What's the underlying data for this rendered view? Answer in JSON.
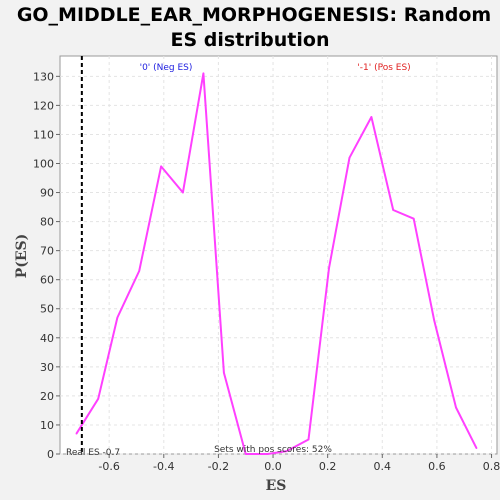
{
  "chart_data": {
    "type": "line",
    "title_line1": "GO_MIDDLE_EAR_MORPHOGENESIS: Random",
    "title_line2": "ES distribution",
    "xlabel": "ES",
    "ylabel": "P(ES)",
    "xlim": [
      -0.78,
      0.82
    ],
    "ylim": [
      0,
      137
    ],
    "x_ticks": [
      "-0.6",
      "-0.4",
      "-0.2",
      "0.0",
      "0.2",
      "0.4",
      "0.6",
      "0.8"
    ],
    "x_tick_values": [
      -0.6,
      -0.4,
      -0.2,
      0.0,
      0.2,
      0.4,
      0.6,
      0.8
    ],
    "y_ticks": [
      "0",
      "10",
      "20",
      "30",
      "40",
      "50",
      "60",
      "70",
      "80",
      "90",
      "100",
      "110",
      "120",
      "130"
    ],
    "y_tick_values": [
      0,
      10,
      20,
      30,
      40,
      50,
      60,
      70,
      80,
      90,
      100,
      110,
      120,
      130
    ],
    "grid": true,
    "series": [
      {
        "color": "#ff40ff",
        "x": [
          -0.72,
          -0.64,
          -0.57,
          -0.49,
          -0.41,
          -0.33,
          -0.255,
          -0.18,
          -0.1,
          -0.02,
          0.05,
          0.13,
          0.205,
          0.28,
          0.36,
          0.44,
          0.515,
          0.59,
          0.67,
          0.745
        ],
        "y": [
          7,
          19,
          47,
          63,
          99,
          90,
          131,
          28,
          0,
          0,
          1,
          5,
          64,
          102,
          116,
          84,
          81,
          46,
          16,
          2
        ]
      }
    ],
    "real_es": {
      "value": -0.7,
      "label": "Real ES -0.7",
      "color": "#000000"
    },
    "annotations": {
      "neg_label": "'0' (Neg ES)",
      "neg_color": "#2020e0",
      "pos_label": "'-1' (Pos ES)",
      "pos_color": "#e02020",
      "sets_label": "Sets with pos scores: 52%"
    }
  }
}
